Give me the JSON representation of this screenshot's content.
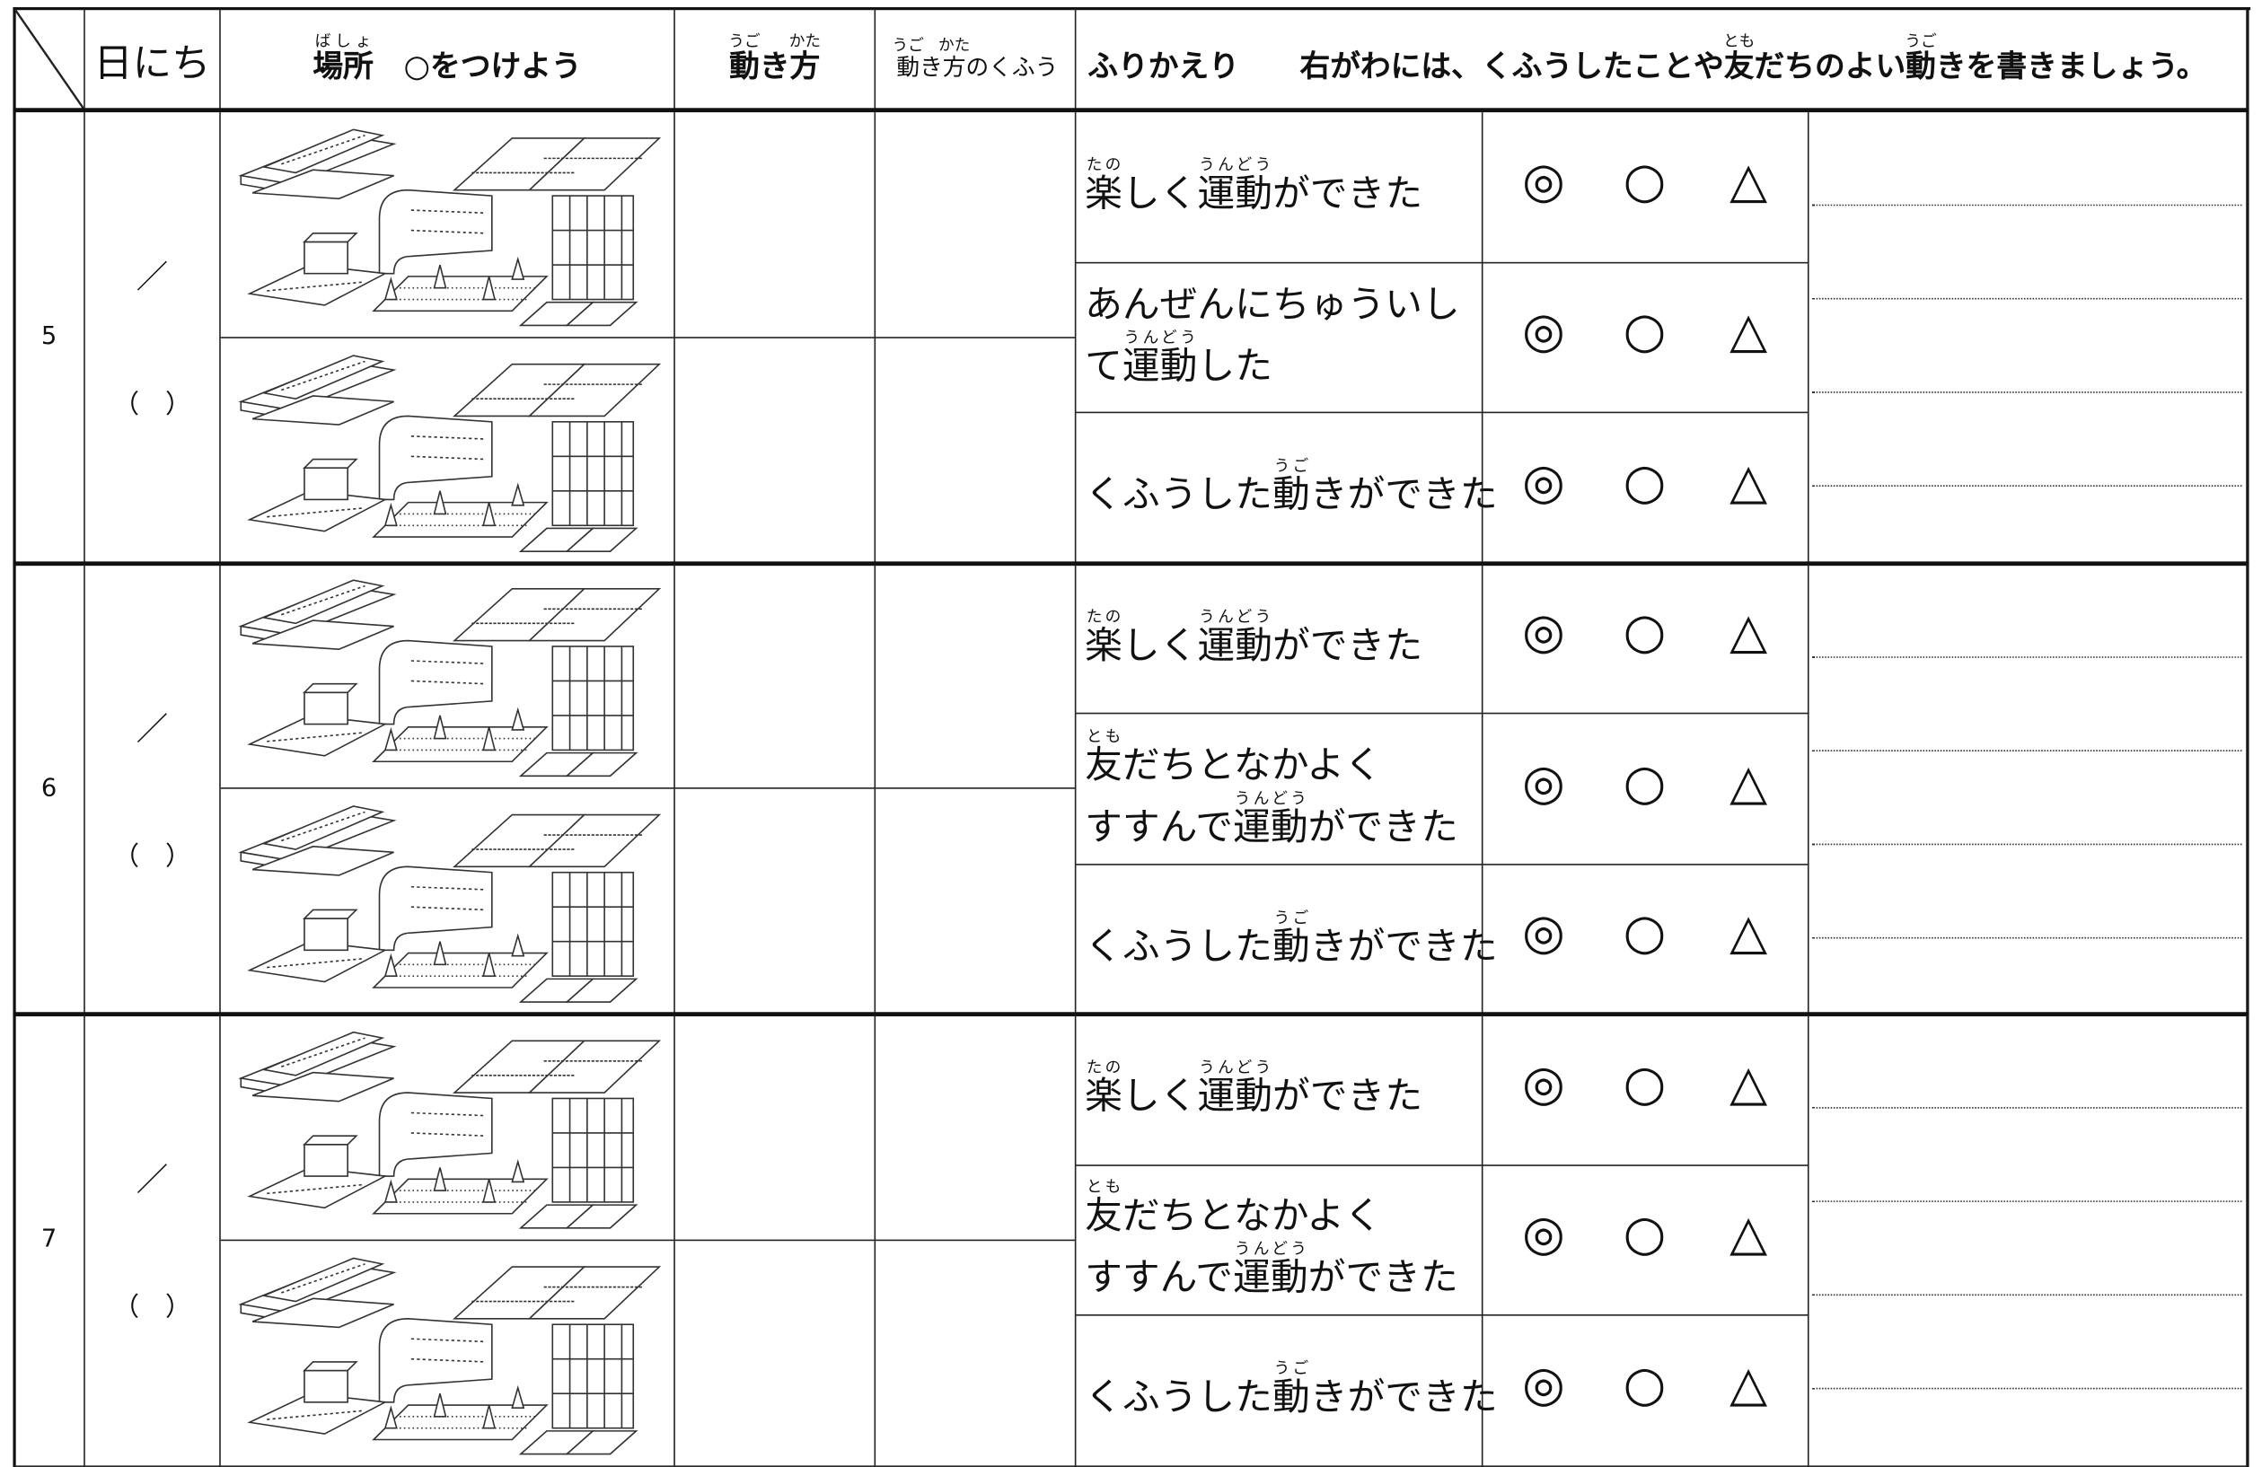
{
  "header": {
    "date": "日にち",
    "place": [
      {
        "t": "場所",
        "r": "ばしょ"
      },
      {
        "t": "　○をつけよう"
      }
    ],
    "movement": [
      {
        "t": "動",
        "r": "うご"
      },
      {
        "t": "き"
      },
      {
        "t": "方",
        "r": "かた"
      }
    ],
    "ideas": [
      {
        "t": "動",
        "r": "うご"
      },
      {
        "t": "き"
      },
      {
        "t": "方",
        "r": "かた"
      },
      {
        "t": "のくふう"
      }
    ],
    "reflection": [
      {
        "t": "ふりかえり　　右がわには、くふうしたことや"
      },
      {
        "t": "友",
        "r": "とも"
      },
      {
        "t": "だちのよい"
      },
      {
        "t": "動",
        "r": "うご"
      },
      {
        "t": "きを書きましょう。"
      }
    ]
  },
  "groups": [
    {
      "number": "5",
      "date": "／",
      "weekday": "（　）",
      "items": [
        {
          "lines": [
            [
              {
                "t": "楽",
                "r": "たの"
              },
              {
                "t": "しく"
              },
              {
                "t": "運動",
                "r": "うんどう"
              },
              {
                "t": "ができた"
              }
            ]
          ],
          "marks": [
            "◎",
            "○",
            "△"
          ]
        },
        {
          "lines": [
            [
              {
                "t": "あんぜんにちゅういし"
              }
            ],
            [
              {
                "t": "て"
              },
              {
                "t": "運動",
                "r": "うんどう"
              },
              {
                "t": "した"
              }
            ]
          ],
          "marks": [
            "◎",
            "○",
            "△"
          ]
        },
        {
          "lines": [
            [
              {
                "t": "くふうした"
              },
              {
                "t": "動",
                "r": "うご"
              },
              {
                "t": "きができた"
              }
            ]
          ],
          "marks": [
            "◎",
            "○",
            "△"
          ]
        }
      ]
    },
    {
      "number": "6",
      "date": "／",
      "weekday": "（　）",
      "items": [
        {
          "lines": [
            [
              {
                "t": "楽",
                "r": "たの"
              },
              {
                "t": "しく"
              },
              {
                "t": "運動",
                "r": "うんどう"
              },
              {
                "t": "ができた"
              }
            ]
          ],
          "marks": [
            "◎",
            "○",
            "△"
          ]
        },
        {
          "lines": [
            [
              {
                "t": "友",
                "r": "とも"
              },
              {
                "t": "だちとなかよく"
              }
            ],
            [
              {
                "t": "すすんで"
              },
              {
                "t": "運動",
                "r": "うんどう"
              },
              {
                "t": "ができた"
              }
            ]
          ],
          "marks": [
            "◎",
            "○",
            "△"
          ]
        },
        {
          "lines": [
            [
              {
                "t": "くふうした"
              },
              {
                "t": "動",
                "r": "うご"
              },
              {
                "t": "きができた"
              }
            ]
          ],
          "marks": [
            "◎",
            "○",
            "△"
          ]
        }
      ]
    },
    {
      "number": "7",
      "date": "／",
      "weekday": "（　）",
      "items": [
        {
          "lines": [
            [
              {
                "t": "楽",
                "r": "たの"
              },
              {
                "t": "しく"
              },
              {
                "t": "運動",
                "r": "うんどう"
              },
              {
                "t": "ができた"
              }
            ]
          ],
          "marks": [
            "◎",
            "○",
            "△"
          ]
        },
        {
          "lines": [
            [
              {
                "t": "友",
                "r": "とも"
              },
              {
                "t": "だちとなかよく"
              }
            ],
            [
              {
                "t": "すすんで"
              },
              {
                "t": "運動",
                "r": "うんどう"
              },
              {
                "t": "ができた"
              }
            ]
          ],
          "marks": [
            "◎",
            "○",
            "△"
          ]
        },
        {
          "lines": [
            [
              {
                "t": "くふうした"
              },
              {
                "t": "動",
                "r": "うご"
              },
              {
                "t": "きができた"
              }
            ]
          ],
          "marks": [
            "◎",
            "○",
            "△"
          ]
        }
      ]
    }
  ]
}
